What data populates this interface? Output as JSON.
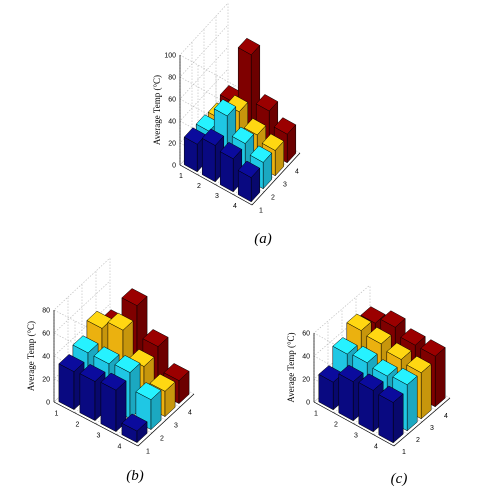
{
  "chart_data": [
    {
      "type": "bar3d",
      "caption": "(a)",
      "zlabel": "Average Temp (°C)",
      "zticks": [
        0,
        20,
        40,
        60,
        80,
        100
      ],
      "zlim": [
        0,
        100
      ],
      "row_ticks": [
        "1",
        "2",
        "3",
        "4"
      ],
      "col_ticks": [
        "1",
        "2",
        "3",
        "4"
      ],
      "series": [
        {
          "name": "",
          "color": "#0a0a8c",
          "values": [
            25,
            33,
            30,
            22
          ]
        },
        {
          "name": "",
          "color": "#22d8f8",
          "values": [
            25,
            48,
            32,
            24
          ]
        },
        {
          "name": "",
          "color": "#ffc010",
          "values": [
            24,
            40,
            28,
            23
          ]
        },
        {
          "name": "",
          "color": "#8a0000",
          "values": [
            28,
            80,
            38,
            26
          ]
        }
      ]
    },
    {
      "type": "bar3d",
      "caption": "(b)",
      "zlabel": "Average Temp (°C)",
      "zticks": [
        0,
        20,
        40,
        60,
        80
      ],
      "zlim": [
        0,
        80
      ],
      "row_ticks": [
        "1",
        "2",
        "3",
        "4"
      ],
      "col_ticks": [
        "1",
        "2",
        "3",
        "4"
      ],
      "series": [
        {
          "name": "",
          "color": "#0a0a8c",
          "values": [
            33,
            34,
            36,
            10
          ]
        },
        {
          "name": "",
          "color": "#22d8f8",
          "values": [
            38,
            38,
            40,
            26
          ]
        },
        {
          "name": "",
          "color": "#ffc010",
          "values": [
            48,
            56,
            34,
            22
          ]
        },
        {
          "name": "",
          "color": "#8a0000",
          "values": [
            38,
            66,
            40,
            20
          ]
        }
      ]
    },
    {
      "type": "bar3d",
      "caption": "(c)",
      "zlabel": "Average Temp (°C)",
      "zticks": [
        0,
        20,
        40,
        60
      ],
      "zlim": [
        0,
        60
      ],
      "row_ticks": [
        "1",
        "2",
        "3",
        "4"
      ],
      "col_ticks": [
        "1",
        "2",
        "3",
        "4"
      ],
      "series": [
        {
          "name": "",
          "color": "#0a0a8c",
          "values": [
            24,
            34,
            36,
            35
          ]
        },
        {
          "name": "",
          "color": "#22d8f8",
          "values": [
            38,
            40,
            38,
            40
          ]
        },
        {
          "name": "",
          "color": "#ffc010",
          "values": [
            48,
            46,
            42,
            40
          ]
        },
        {
          "name": "",
          "color": "#8a0000",
          "values": [
            44,
            50,
            44,
            44
          ]
        }
      ]
    }
  ]
}
